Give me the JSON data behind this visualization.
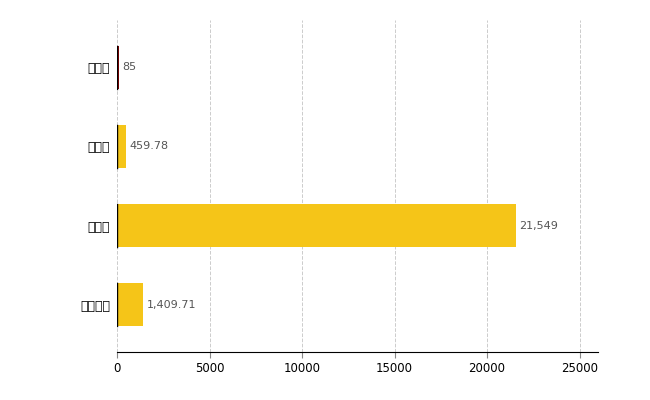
{
  "categories": [
    "豊富町",
    "県平均",
    "県最大",
    "全国平均"
  ],
  "values": [
    85,
    459.78,
    21549,
    1409.71
  ],
  "bar_colors": [
    "#8b0000",
    "#f5c518",
    "#f5c518",
    "#f5c518"
  ],
  "value_labels": [
    "85",
    "459.78",
    "21,549",
    "1,409.71"
  ],
  "xlim": [
    0,
    26000
  ],
  "xticks": [
    0,
    5000,
    10000,
    15000,
    20000,
    25000
  ],
  "xtick_labels": [
    "0",
    "5000",
    "10000",
    "15000",
    "20000",
    "25000"
  ],
  "background_color": "#ffffff",
  "grid_color": "#cccccc",
  "bar_height": 0.55
}
